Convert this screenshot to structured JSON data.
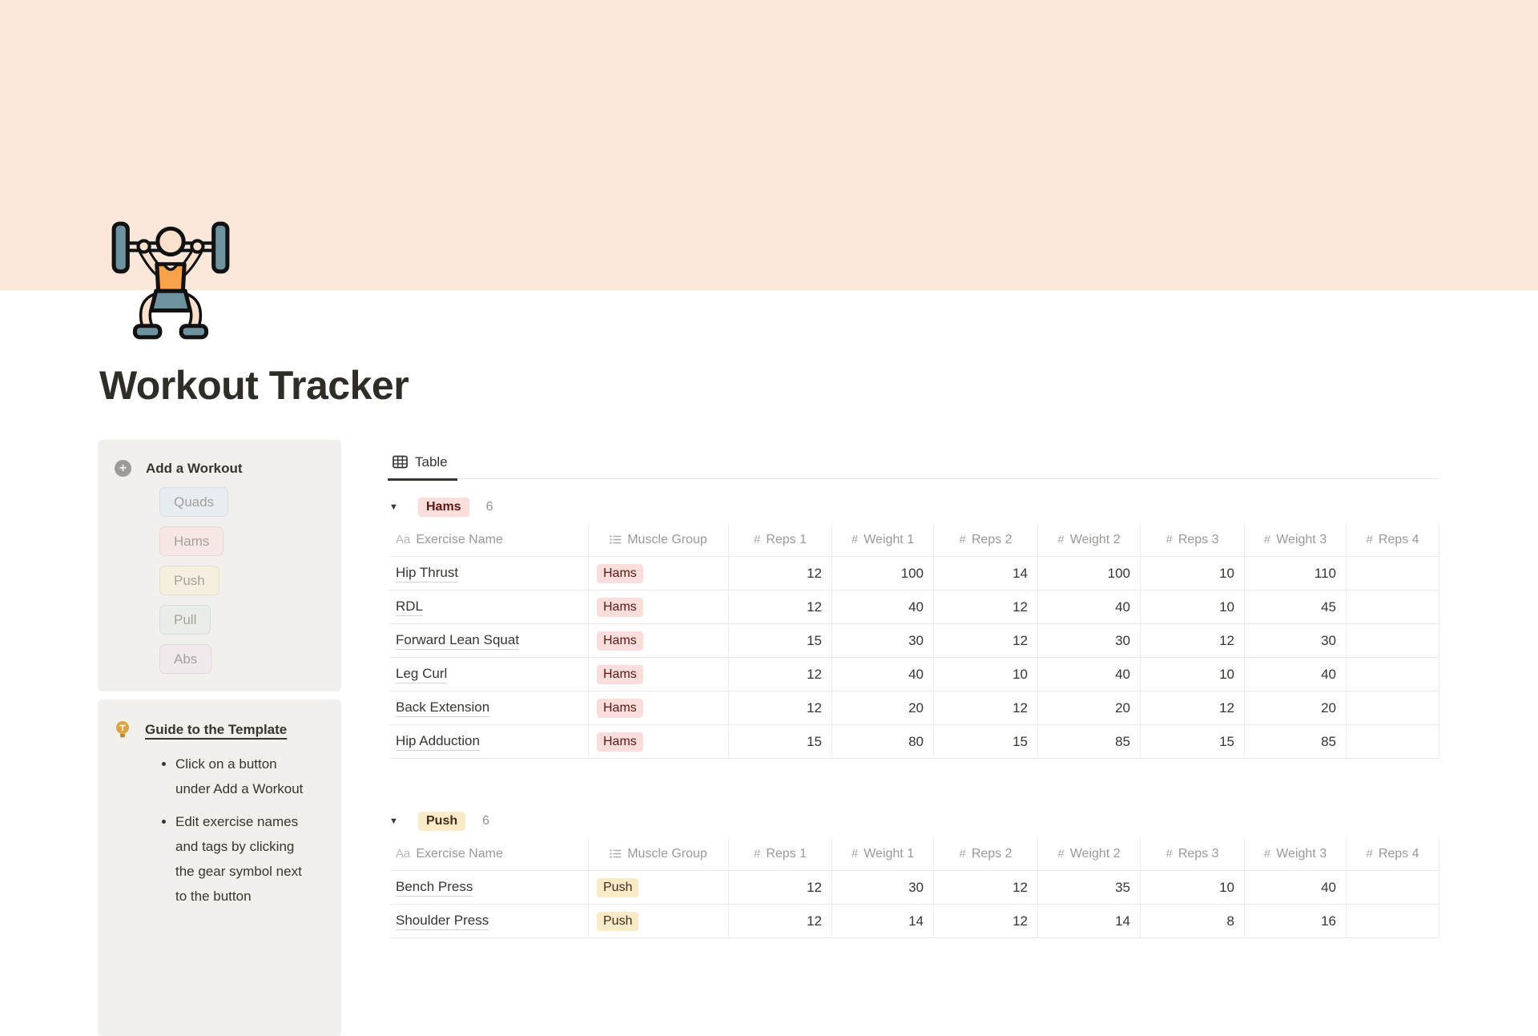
{
  "page": {
    "title": "Workout Tracker",
    "icon": "weightlifter-squat-icon"
  },
  "cover": {
    "color": "#FBE8DA"
  },
  "icons": {
    "group_toggle": "▼",
    "plus": "+",
    "title_type": "Aa",
    "number_type": "#"
  },
  "sidebar": {
    "add_workout": {
      "title": "Add a Workout",
      "buttons": [
        {
          "label": "Quads",
          "bg": "#E7EDF0"
        },
        {
          "label": "Hams",
          "bg": "#F7E8E6"
        },
        {
          "label": "Push",
          "bg": "#F4EFDE"
        },
        {
          "label": "Pull",
          "bg": "#EBEDE8"
        },
        {
          "label": "Abs",
          "bg": "#F1EAED"
        }
      ]
    },
    "guide": {
      "title": "Guide to the Template",
      "bullets": [
        "Click on a button under Add a Workout",
        "Edit exercise names and tags by clicking the gear symbol next to the button"
      ]
    }
  },
  "main": {
    "tabs": [
      {
        "label": "Table",
        "active": true
      }
    ],
    "columns": [
      {
        "type": "title",
        "label": "Exercise Name"
      },
      {
        "type": "list",
        "label": "Muscle Group"
      },
      {
        "type": "number",
        "label": "Reps 1"
      },
      {
        "type": "number",
        "label": "Weight 1"
      },
      {
        "type": "number",
        "label": "Reps 2"
      },
      {
        "type": "number",
        "label": "Weight 2"
      },
      {
        "type": "number",
        "label": "Reps 3"
      },
      {
        "type": "number",
        "label": "Weight 3"
      },
      {
        "type": "number",
        "label": "Reps 4"
      }
    ],
    "groups": [
      {
        "label": "Hams",
        "count": "6",
        "pill_bg": "#FBDEDB",
        "pill_color": "#5D1715",
        "rows": [
          {
            "name": "Hip Thrust",
            "tag": "Hams",
            "values": [
              "12",
              "100",
              "14",
              "100",
              "10",
              "110",
              ""
            ]
          },
          {
            "name": "RDL",
            "tag": "Hams",
            "values": [
              "12",
              "40",
              "12",
              "40",
              "10",
              "45",
              ""
            ]
          },
          {
            "name": "Forward Lean Squat",
            "tag": "Hams",
            "values": [
              "15",
              "30",
              "12",
              "30",
              "12",
              "30",
              ""
            ]
          },
          {
            "name": "Leg Curl",
            "tag": "Hams",
            "values": [
              "12",
              "40",
              "10",
              "40",
              "10",
              "40",
              ""
            ]
          },
          {
            "name": "Back Extension",
            "tag": "Hams",
            "values": [
              "12",
              "20",
              "12",
              "20",
              "12",
              "20",
              ""
            ]
          },
          {
            "name": "Hip Adduction",
            "tag": "Hams",
            "values": [
              "15",
              "80",
              "15",
              "85",
              "15",
              "85",
              ""
            ]
          }
        ]
      },
      {
        "label": "Push",
        "count": "6",
        "pill_bg": "#FAEBC8",
        "pill_color": "#402C1B",
        "rows": [
          {
            "name": "Bench Press",
            "tag": "Push",
            "values": [
              "12",
              "30",
              "12",
              "35",
              "10",
              "40",
              ""
            ]
          },
          {
            "name": "Shoulder Press",
            "tag": "Push",
            "values": [
              "12",
              "14",
              "12",
              "14",
              "8",
              "16",
              ""
            ]
          }
        ]
      }
    ]
  }
}
